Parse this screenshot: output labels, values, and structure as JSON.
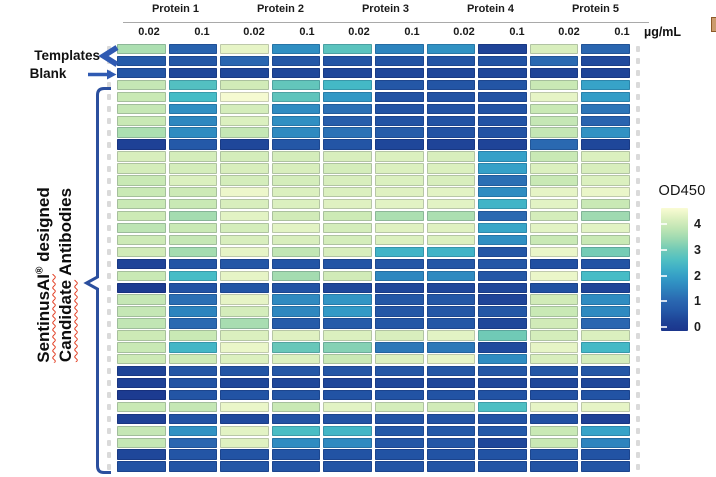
{
  "figure": {
    "header": {
      "proteins": [
        "Protein 1",
        "Protein 2",
        "Protein 3",
        "Protein 4",
        "Protein 5"
      ],
      "concentrations": [
        "0.02",
        "0.1"
      ],
      "unit": "µg/mL"
    },
    "annotations": {
      "templates_label": "Templates",
      "blank_label": "Blank"
    },
    "side_label": {
      "word1": "SentinusAI",
      "reg_mark": "®",
      "line1_rest": " designed",
      "word2": "Candidate",
      "line2_rest": " Antibodies"
    },
    "colorbar": {
      "title": "OD450",
      "tick_labels": [
        "4",
        "3",
        "2",
        "1",
        "0"
      ]
    }
  },
  "chart_data": {
    "type": "heatmap",
    "title": "",
    "col_groups": [
      "Protein 1",
      "Protein 2",
      "Protein 3",
      "Protein 4",
      "Protein 5"
    ],
    "col_concentrations_ug_per_mL": [
      0.02,
      0.1,
      0.02,
      0.1,
      0.02,
      0.1,
      0.02,
      0.1,
      0.02,
      0.1
    ],
    "row_groups": [
      {
        "name": "Templates",
        "rows": [
          0,
          1
        ]
      },
      {
        "name": "Blank",
        "rows": [
          2
        ]
      },
      {
        "name": "SentinusAI designed Candidate Antibodies",
        "rows": [
          3,
          35
        ]
      }
    ],
    "value_label": "OD450",
    "value_range": [
      0,
      4.65
    ],
    "colorbar_ticks": [
      4,
      3,
      2,
      1,
      0
    ],
    "colormap_anchors": [
      [
        0.0,
        "#1b358c"
      ],
      [
        0.5,
        "#2253a4"
      ],
      [
        1.0,
        "#2a66b0"
      ],
      [
        1.5,
        "#2d84be"
      ],
      [
        2.0,
        "#35a0c8"
      ],
      [
        2.5,
        "#46bcc6"
      ],
      [
        3.0,
        "#70cab6"
      ],
      [
        3.5,
        "#a4dcb0"
      ],
      [
        4.0,
        "#cdeab6"
      ],
      [
        4.35,
        "#e6f4c6"
      ],
      [
        4.65,
        "#fcfdd6"
      ]
    ],
    "values": [
      [
        3.6,
        0.9,
        4.35,
        1.7,
        2.75,
        1.5,
        1.75,
        0.25,
        4.15,
        1.0
      ],
      [
        0.7,
        0.6,
        1.0,
        0.6,
        0.55,
        0.5,
        0.55,
        0.5,
        1.05,
        0.35
      ],
      [
        0.55,
        0.3,
        0.3,
        0.3,
        0.3,
        0.3,
        0.3,
        0.3,
        0.25,
        0.25
      ],
      [
        3.9,
        2.65,
        4.05,
        2.85,
        2.45,
        0.6,
        0.55,
        0.55,
        3.95,
        2.05
      ],
      [
        3.95,
        2.5,
        4.55,
        2.8,
        1.85,
        0.5,
        0.5,
        0.5,
        4.35,
        1.95
      ],
      [
        3.9,
        1.7,
        4.1,
        1.65,
        1.15,
        0.5,
        0.5,
        0.5,
        3.95,
        1.25
      ],
      [
        3.95,
        1.55,
        4.2,
        1.7,
        0.8,
        0.5,
        0.5,
        0.5,
        3.9,
        0.95
      ],
      [
        3.6,
        1.65,
        3.9,
        1.6,
        1.2,
        0.75,
        0.5,
        0.5,
        3.9,
        1.75
      ],
      [
        0.2,
        0.65,
        0.3,
        0.6,
        0.55,
        0.3,
        0.25,
        0.25,
        1.05,
        0.3
      ],
      [
        4.15,
        4.1,
        4.1,
        4.1,
        4.15,
        4.2,
        4.15,
        2.0,
        3.95,
        4.2
      ],
      [
        4.1,
        4.1,
        4.15,
        4.15,
        4.1,
        4.2,
        4.2,
        2.0,
        4.2,
        4.15
      ],
      [
        3.95,
        4.2,
        4.1,
        4.1,
        4.15,
        4.2,
        4.15,
        1.15,
        3.95,
        4.2
      ],
      [
        3.95,
        4.0,
        4.45,
        4.2,
        4.2,
        4.25,
        4.3,
        1.65,
        4.35,
        4.4
      ],
      [
        3.95,
        3.95,
        4.15,
        4.2,
        4.25,
        4.3,
        4.3,
        2.35,
        4.3,
        3.95
      ],
      [
        4.0,
        3.5,
        4.3,
        4.05,
        4.0,
        3.6,
        3.6,
        1.05,
        4.1,
        3.45
      ],
      [
        3.8,
        3.95,
        4.1,
        4.3,
        4.1,
        4.25,
        4.25,
        2.1,
        4.3,
        4.3
      ],
      [
        4.0,
        3.9,
        4.15,
        4.15,
        4.1,
        4.2,
        4.2,
        1.7,
        3.95,
        3.95
      ],
      [
        4.05,
        3.5,
        4.35,
        3.85,
        4.15,
        2.35,
        2.35,
        0.6,
        4.4,
        3.05
      ],
      [
        0.25,
        0.55,
        0.6,
        0.55,
        0.55,
        0.6,
        0.6,
        0.6,
        0.45,
        0.5
      ],
      [
        3.95,
        2.5,
        4.35,
        3.5,
        4.05,
        1.55,
        1.6,
        0.6,
        4.4,
        2.5
      ],
      [
        0.1,
        0.5,
        0.55,
        0.5,
        0.3,
        0.3,
        0.3,
        0.3,
        0.45,
        0.25
      ],
      [
        3.9,
        1.15,
        4.35,
        1.6,
        1.8,
        0.6,
        0.6,
        0.25,
        4.05,
        1.65
      ],
      [
        3.9,
        1.5,
        4.1,
        1.55,
        1.9,
        0.6,
        0.6,
        0.6,
        3.95,
        1.6
      ],
      [
        3.85,
        1.05,
        3.55,
        0.7,
        0.7,
        0.6,
        0.6,
        0.3,
        4.05,
        1.0
      ],
      [
        4.0,
        3.95,
        4.2,
        4.25,
        4.2,
        4.15,
        4.3,
        3.0,
        4.1,
        4.2
      ],
      [
        3.95,
        2.4,
        4.4,
        2.9,
        3.2,
        1.3,
        1.3,
        0.35,
        4.35,
        2.45
      ],
      [
        4.0,
        4.0,
        4.2,
        4.2,
        3.95,
        4.2,
        4.35,
        1.65,
        4.15,
        4.1
      ],
      [
        0.25,
        0.6,
        0.55,
        0.6,
        0.6,
        0.6,
        0.6,
        0.6,
        0.6,
        0.6
      ],
      [
        0.2,
        0.5,
        0.3,
        0.3,
        0.3,
        0.3,
        0.3,
        0.3,
        0.3,
        0.3
      ],
      [
        0.1,
        0.55,
        0.5,
        0.55,
        0.5,
        0.5,
        0.5,
        0.5,
        0.45,
        0.5
      ],
      [
        3.95,
        3.9,
        4.4,
        3.95,
        4.3,
        4.1,
        4.05,
        2.6,
        4.35,
        4.35
      ],
      [
        0.2,
        0.5,
        0.35,
        0.5,
        0.5,
        0.5,
        0.5,
        0.5,
        0.45,
        0.2
      ],
      [
        3.9,
        1.75,
        4.3,
        2.55,
        2.4,
        0.65,
        0.65,
        0.65,
        3.95,
        2.05
      ],
      [
        3.9,
        1.0,
        4.25,
        1.65,
        1.6,
        0.6,
        0.6,
        0.3,
        3.95,
        1.5
      ],
      [
        0.3,
        0.55,
        0.5,
        0.55,
        0.5,
        0.5,
        0.5,
        0.5,
        0.55,
        0.5
      ],
      [
        0.5,
        0.55,
        0.6,
        0.55,
        0.55,
        0.55,
        0.55,
        0.55,
        0.5,
        0.55
      ]
    ],
    "legend_position": "right",
    "grid": false
  },
  "accent_colors": {
    "annotation_blue": "#2f5ab2",
    "bracket_blue": "#2b4f9e",
    "squiggle_red": "#e23a1e"
  }
}
